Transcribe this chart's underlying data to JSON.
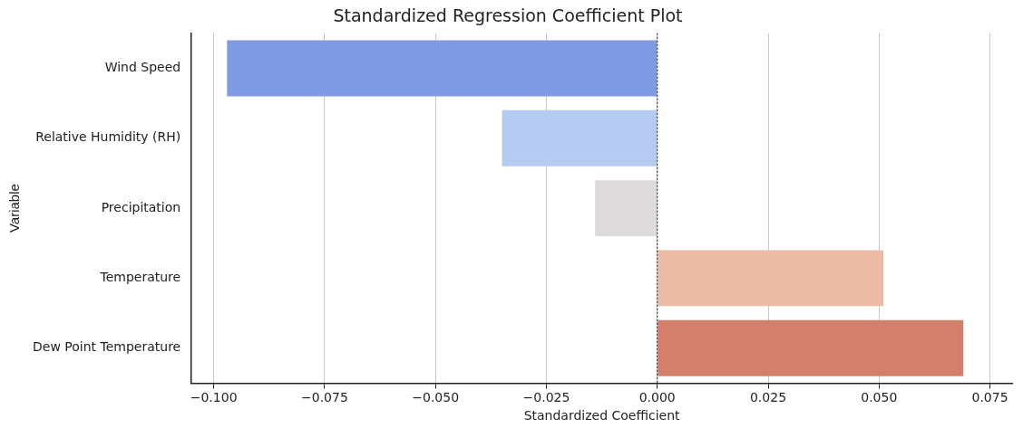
{
  "chart_data": {
    "type": "bar",
    "orientation": "horizontal",
    "title": "Standardized Regression Coefficient Plot",
    "xlabel": "Standardized Coefficient",
    "ylabel": "Variable",
    "categories": [
      "Wind Speed",
      "Relative Humidity (RH)",
      "Precipitation",
      "Temperature",
      "Dew Point Temperature"
    ],
    "values": [
      -0.097,
      -0.035,
      -0.014,
      0.051,
      0.069
    ],
    "colors": [
      "#7f9be4",
      "#b5cbf2",
      "#dcdadb",
      "#ebbba3",
      "#d47f6c"
    ],
    "xlim": [
      -0.105,
      0.08
    ],
    "xticks": [
      {
        "value": -0.1,
        "label": "−0.100"
      },
      {
        "value": -0.075,
        "label": "−0.075"
      },
      {
        "value": -0.05,
        "label": "−0.050"
      },
      {
        "value": -0.025,
        "label": "−0.025"
      },
      {
        "value": 0,
        "label": "0.000"
      },
      {
        "value": 0.025,
        "label": "0.025"
      },
      {
        "value": 0.05,
        "label": "0.050"
      },
      {
        "value": 0.075,
        "label": "0.075"
      }
    ],
    "grid": "x",
    "ref_lines": [
      {
        "axis": "x",
        "value": 0,
        "label": null,
        "color": "#333333",
        "line_style": "dotted"
      }
    ],
    "legend": false
  }
}
